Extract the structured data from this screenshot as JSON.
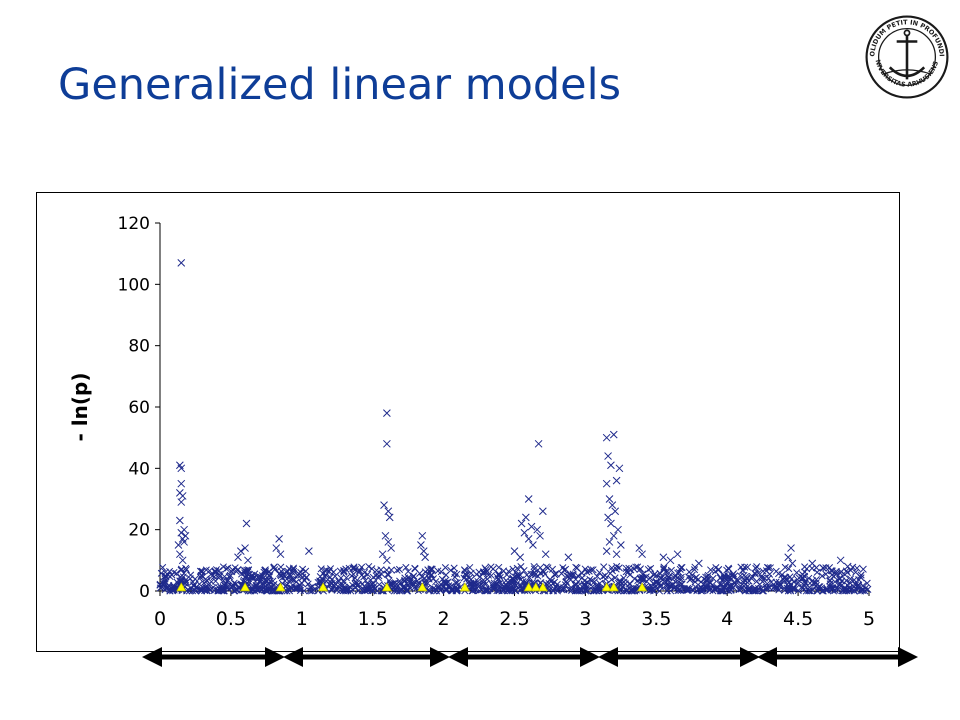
{
  "slide": {
    "title": "Generalized linear models"
  },
  "logo": {
    "name": "Aarhus University seal",
    "text_top": "SOLIDUM PETIT IN PROFUNDIS",
    "text_bottom": "UNIVERSITAS ARHUSIENSIS",
    "color": "#1a1a1a"
  },
  "chart_data": {
    "type": "scatter",
    "title": "",
    "xlabel": "",
    "ylabel": "- ln(p)",
    "xlim": [
      0,
      5
    ],
    "ylim": [
      0,
      120
    ],
    "x_ticks": [
      "0",
      "0.5",
      "1",
      "1.5",
      "2",
      "2.5",
      "3",
      "3.5",
      "4",
      "4.5",
      "5"
    ],
    "y_ticks": [
      "0",
      "20",
      "40",
      "60",
      "80",
      "100",
      "120"
    ],
    "grid": false,
    "legend": "none",
    "series": [
      {
        "marker": "x",
        "color": "#1f2a8c",
        "points": [
          [
            0.15,
            107
          ],
          [
            0.14,
            41
          ],
          [
            0.15,
            40
          ],
          [
            0.15,
            35
          ],
          [
            0.14,
            32
          ],
          [
            0.16,
            31
          ],
          [
            0.15,
            29
          ],
          [
            0.14,
            23
          ],
          [
            0.17,
            20
          ],
          [
            0.15,
            19
          ],
          [
            0.18,
            18
          ],
          [
            0.16,
            17
          ],
          [
            0.17,
            16
          ],
          [
            0.13,
            15
          ],
          [
            0.14,
            12
          ],
          [
            0.16,
            10
          ],
          [
            0.61,
            22
          ],
          [
            0.6,
            14
          ],
          [
            0.57,
            13
          ],
          [
            0.55,
            11
          ],
          [
            0.62,
            10
          ],
          [
            0.84,
            17
          ],
          [
            0.82,
            14
          ],
          [
            0.85,
            12
          ],
          [
            1.05,
            13
          ],
          [
            1.6,
            58
          ],
          [
            1.6,
            48
          ],
          [
            1.58,
            28
          ],
          [
            1.61,
            26
          ],
          [
            1.62,
            24
          ],
          [
            1.59,
            18
          ],
          [
            1.61,
            16
          ],
          [
            1.63,
            14
          ],
          [
            1.57,
            12
          ],
          [
            1.6,
            10
          ],
          [
            1.85,
            18
          ],
          [
            1.84,
            15
          ],
          [
            1.86,
            13
          ],
          [
            1.87,
            11
          ],
          [
            2.6,
            30
          ],
          [
            2.58,
            24
          ],
          [
            2.55,
            22
          ],
          [
            2.62,
            21
          ],
          [
            2.57,
            19
          ],
          [
            2.6,
            17
          ],
          [
            2.63,
            15
          ],
          [
            2.66,
            20
          ],
          [
            2.67,
            48
          ],
          [
            2.7,
            26
          ],
          [
            2.68,
            18
          ],
          [
            2.5,
            13
          ],
          [
            2.54,
            11
          ],
          [
            2.72,
            12
          ],
          [
            2.88,
            11
          ],
          [
            3.15,
            50
          ],
          [
            3.2,
            51
          ],
          [
            3.16,
            44
          ],
          [
            3.18,
            41
          ],
          [
            3.15,
            35
          ],
          [
            3.22,
            36
          ],
          [
            3.24,
            40
          ],
          [
            3.17,
            30
          ],
          [
            3.19,
            28
          ],
          [
            3.21,
            26
          ],
          [
            3.16,
            24
          ],
          [
            3.18,
            22
          ],
          [
            3.23,
            20
          ],
          [
            3.2,
            18
          ],
          [
            3.17,
            16
          ],
          [
            3.25,
            15
          ],
          [
            3.15,
            13
          ],
          [
            3.22,
            12
          ],
          [
            3.38,
            14
          ],
          [
            3.4,
            12
          ],
          [
            3.55,
            11
          ],
          [
            3.65,
            12
          ],
          [
            3.6,
            10
          ],
          [
            3.8,
            9
          ],
          [
            4.45,
            14
          ],
          [
            4.43,
            11
          ],
          [
            4.46,
            9
          ],
          [
            4.6,
            9
          ],
          [
            4.8,
            10
          ],
          [
            4.85,
            8
          ]
        ]
      },
      {
        "marker": "triangle",
        "color": "#ffff00",
        "points": [
          [
            0.15,
            1
          ],
          [
            0.6,
            1
          ],
          [
            0.85,
            1
          ],
          [
            1.15,
            1
          ],
          [
            1.6,
            1
          ],
          [
            1.85,
            1
          ],
          [
            2.15,
            1
          ],
          [
            2.6,
            1
          ],
          [
            2.65,
            1
          ],
          [
            2.7,
            1
          ],
          [
            3.15,
            1
          ],
          [
            3.2,
            1
          ],
          [
            3.4,
            1
          ]
        ]
      }
    ],
    "baseline_band": {
      "description_free": true,
      "x_range": [
        0,
        5
      ],
      "y_range": [
        0,
        8
      ],
      "marker": "x",
      "color": "#1f2a8c"
    },
    "segments": [
      {
        "x_start": 0,
        "x_end": 1
      },
      {
        "x_start": 1,
        "x_end": 2
      },
      {
        "x_start": 2,
        "x_end": 3
      },
      {
        "x_start": 3,
        "x_end": 4
      },
      {
        "x_start": 4,
        "x_end": 5
      }
    ]
  }
}
